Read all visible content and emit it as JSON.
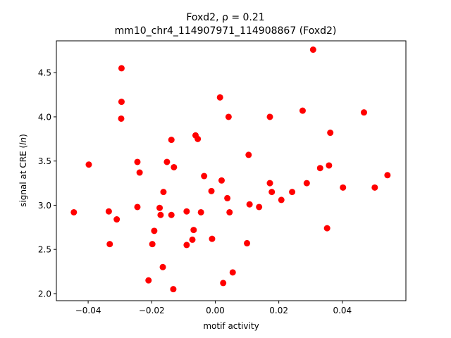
{
  "chart_data": {
    "type": "scatter",
    "title_line1": "Foxd2, ρ = 0.21",
    "title_line2": "mm10_chr4_114907971_114908867 (Foxd2)",
    "xlabel": "motif activity",
    "ylabel": "signal at CRE (ln)",
    "xlim": [
      -0.05,
      0.06
    ],
    "ylim": [
      1.92,
      4.86
    ],
    "xticks": [
      -0.04,
      -0.02,
      0.0,
      0.02,
      0.04
    ],
    "xtick_labels": [
      "−0.04",
      "−0.02",
      "0.00",
      "0.02",
      "0.04"
    ],
    "yticks": [
      2.0,
      2.5,
      3.0,
      3.5,
      4.0,
      4.5
    ],
    "ytick_labels": [
      "2.0",
      "2.5",
      "3.0",
      "3.5",
      "4.0",
      "4.5"
    ],
    "grid": false,
    "marker_color": "#ff0000",
    "points": [
      {
        "x": -0.0445,
        "y": 2.92
      },
      {
        "x": -0.0398,
        "y": 3.46
      },
      {
        "x": -0.0335,
        "y": 2.93
      },
      {
        "x": -0.0332,
        "y": 2.56
      },
      {
        "x": -0.031,
        "y": 2.84
      },
      {
        "x": -0.0295,
        "y": 4.55
      },
      {
        "x": -0.0295,
        "y": 4.17
      },
      {
        "x": -0.0296,
        "y": 3.98
      },
      {
        "x": -0.0245,
        "y": 3.49
      },
      {
        "x": -0.0238,
        "y": 3.37
      },
      {
        "x": -0.0245,
        "y": 2.98
      },
      {
        "x": -0.021,
        "y": 2.15
      },
      {
        "x": -0.0198,
        "y": 2.56
      },
      {
        "x": -0.0192,
        "y": 2.71
      },
      {
        "x": -0.0175,
        "y": 2.97
      },
      {
        "x": -0.0172,
        "y": 2.89
      },
      {
        "x": -0.0165,
        "y": 2.3
      },
      {
        "x": -0.0163,
        "y": 3.15
      },
      {
        "x": -0.0152,
        "y": 3.49
      },
      {
        "x": -0.0138,
        "y": 3.74
      },
      {
        "x": -0.0138,
        "y": 2.89
      },
      {
        "x": -0.0132,
        "y": 2.05
      },
      {
        "x": -0.013,
        "y": 3.43
      },
      {
        "x": -0.009,
        "y": 2.93
      },
      {
        "x": -0.009,
        "y": 2.55
      },
      {
        "x": -0.0072,
        "y": 2.61
      },
      {
        "x": -0.0068,
        "y": 2.72
      },
      {
        "x": -0.0062,
        "y": 3.79
      },
      {
        "x": -0.0055,
        "y": 3.75
      },
      {
        "x": -0.0045,
        "y": 2.92
      },
      {
        "x": -0.0035,
        "y": 3.33
      },
      {
        "x": -0.0012,
        "y": 3.16
      },
      {
        "x": -0.001,
        "y": 2.62
      },
      {
        "x": 0.0015,
        "y": 4.22
      },
      {
        "x": 0.002,
        "y": 3.28
      },
      {
        "x": 0.0025,
        "y": 2.12
      },
      {
        "x": 0.0038,
        "y": 3.08
      },
      {
        "x": 0.0042,
        "y": 4.0
      },
      {
        "x": 0.0045,
        "y": 2.92
      },
      {
        "x": 0.0055,
        "y": 2.24
      },
      {
        "x": 0.01,
        "y": 2.57
      },
      {
        "x": 0.0105,
        "y": 3.57
      },
      {
        "x": 0.0108,
        "y": 3.01
      },
      {
        "x": 0.0138,
        "y": 2.98
      },
      {
        "x": 0.0172,
        "y": 4.0
      },
      {
        "x": 0.0172,
        "y": 3.25
      },
      {
        "x": 0.0178,
        "y": 3.15
      },
      {
        "x": 0.0208,
        "y": 3.06
      },
      {
        "x": 0.0242,
        "y": 3.15
      },
      {
        "x": 0.0275,
        "y": 4.07
      },
      {
        "x": 0.0288,
        "y": 3.25
      },
      {
        "x": 0.0308,
        "y": 4.76
      },
      {
        "x": 0.033,
        "y": 3.42
      },
      {
        "x": 0.0352,
        "y": 2.74
      },
      {
        "x": 0.0358,
        "y": 3.45
      },
      {
        "x": 0.0362,
        "y": 3.82
      },
      {
        "x": 0.0402,
        "y": 3.2
      },
      {
        "x": 0.0468,
        "y": 4.05
      },
      {
        "x": 0.0502,
        "y": 3.2
      },
      {
        "x": 0.0542,
        "y": 3.34
      }
    ]
  }
}
